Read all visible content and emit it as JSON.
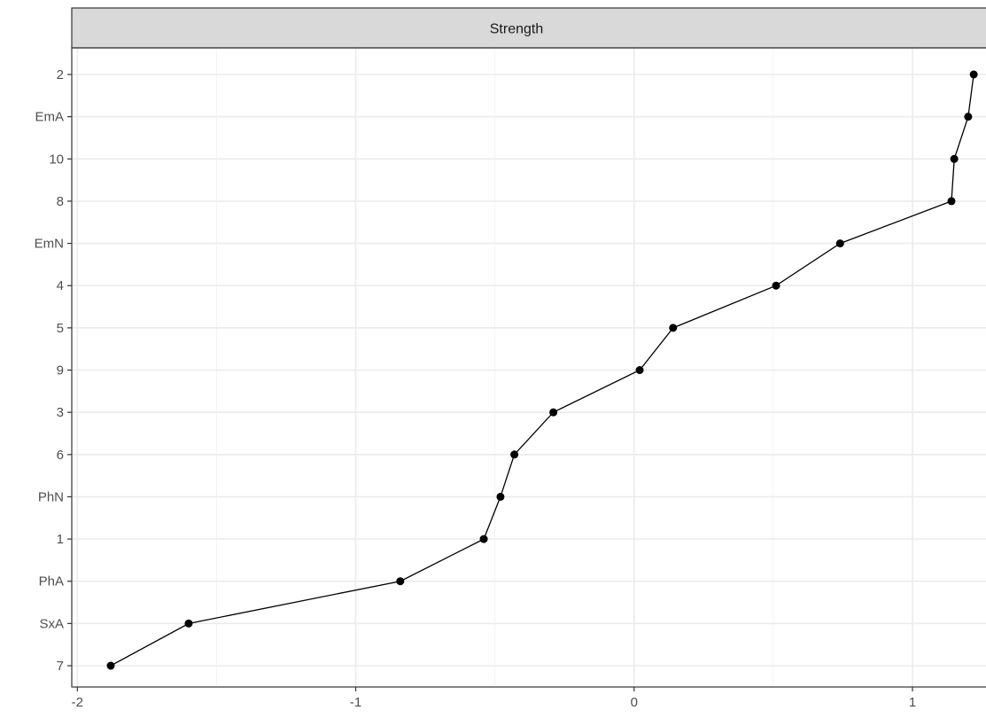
{
  "chart_data": {
    "type": "line",
    "facet_label": "Strength",
    "categories": [
      "7",
      "SxA",
      "PhA",
      "1",
      "PhN",
      "6",
      "3",
      "9",
      "5",
      "4",
      "EmN",
      "8",
      "10",
      "EmA",
      "2"
    ],
    "series": [
      {
        "values": [
          -1.88,
          -1.6,
          -0.84,
          -0.54,
          -0.48,
          -0.43,
          -0.29,
          0.02,
          0.14,
          0.51,
          0.74,
          1.14,
          1.15,
          1.2,
          1.22
        ]
      }
    ],
    "x_ticks": [
      "-2",
      "-1",
      "0",
      "1"
    ],
    "xlim": [
      -2.02,
      1.35
    ],
    "xlabel": "",
    "ylabel": "",
    "grid": true,
    "legend": "none",
    "colors": {
      "line": "#000000",
      "point": "#000000",
      "strip_fill": "#d9d9d9",
      "grid": "#ebebeb",
      "panel_border": "#333333"
    }
  }
}
